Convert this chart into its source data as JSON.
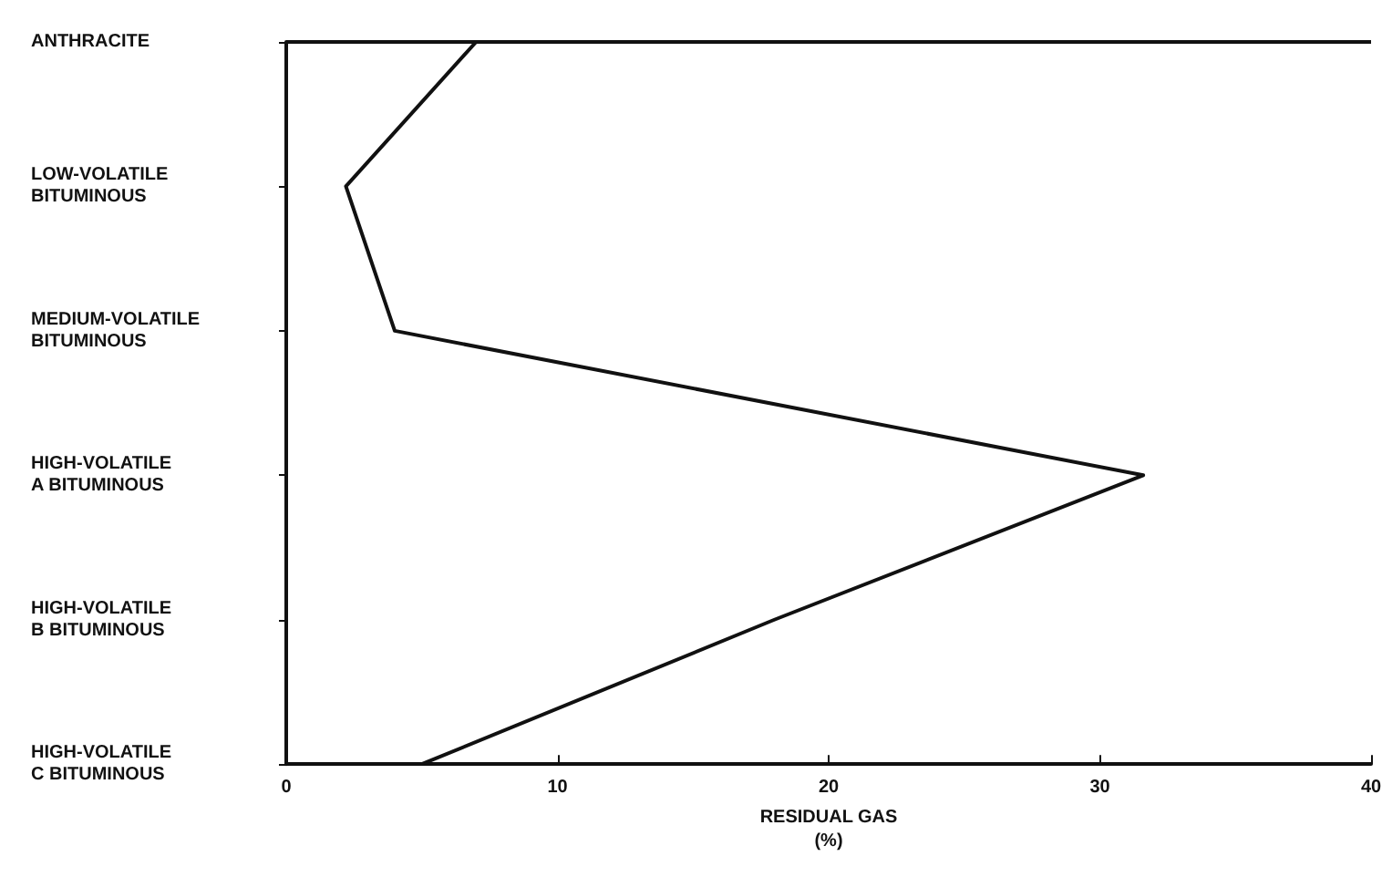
{
  "chart_data": {
    "type": "line",
    "orientation": "horizontal",
    "categories": [
      "ANTHRACITE",
      "LOW-VOLATILE\nBITUMINOUS",
      "MEDIUM-VOLATILE\nBITUMINOUS",
      "HIGH-VOLATILE\nA BITUMINOUS",
      "HIGH-VOLATILE\nB BITUMINOUS",
      "HIGH-VOLATILE\nC BITUMINOUS"
    ],
    "series": [
      {
        "color": "#111111",
        "values": [
          7,
          2.2,
          4,
          31.6,
          18,
          5
        ]
      }
    ],
    "xlabel": "RESIDUAL GAS\n(%)",
    "xlim": [
      0,
      40
    ],
    "xticks": [
      0,
      10,
      20,
      30,
      40
    ],
    "grid": false,
    "marker": "none",
    "line_style": "solid"
  }
}
